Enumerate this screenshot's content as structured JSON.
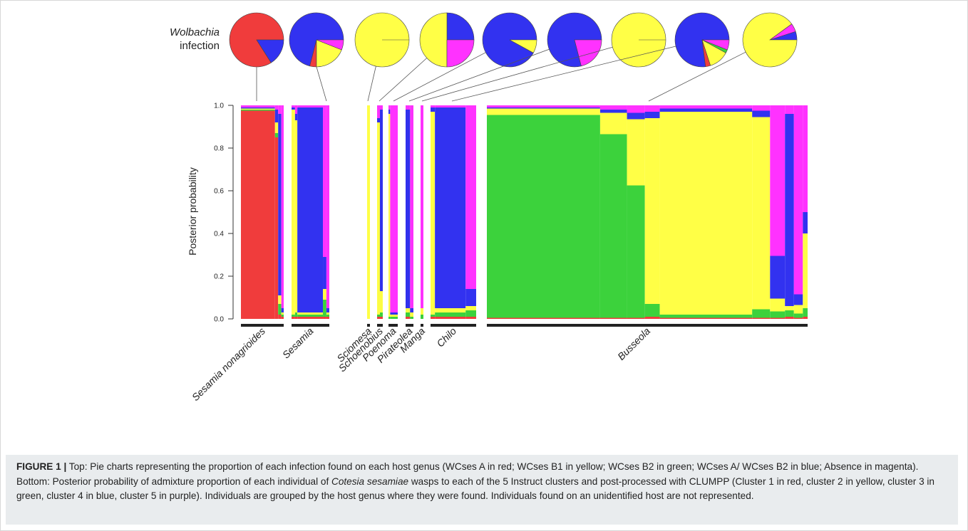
{
  "wolbachia_label": {
    "line1": "Wolbachia",
    "line2": "infection"
  },
  "colors": {
    "red": "#f03c3c",
    "yellow": "#ffff46",
    "green": "#3cd23c",
    "blue": "#3232f0",
    "magenta": "#ff32ff"
  },
  "caption": {
    "figure_label": "FIGURE 1 |",
    "text_part1": " Top: Pie charts representing the proportion of each infection found on each host genus (WCses A in red; WCses B1 in yellow; WCses B2 in green; WCses A/ WCses B2 in blue; Absence in magenta). Bottom: Posterior probability of admixture proportion of each individual of ",
    "species": "Cotesia sesamiae",
    "text_part2": " wasps to each of the 5 Instruct clusters and post-processed with CLUMPP (Cluster 1 in red, cluster 2 in yellow, cluster 3 in green, cluster 4 in blue, cluster 5 in purple). Individuals are grouped by the host genus where they were found. Individuals found on an unidentified host are not represented."
  },
  "chart_data": [
    {
      "type": "pie",
      "title": "Wolbachia infection",
      "note": "one pie per host genus group, proportions of infection types",
      "pies": [
        {
          "host": "Sesamia nonagrioides",
          "slices": [
            {
              "name": "WCses A",
              "color": "red",
              "value": 0.84
            },
            {
              "name": "WCses A/ WCses B2",
              "color": "blue",
              "value": 0.16
            }
          ]
        },
        {
          "host": "Sesamia",
          "slices": [
            {
              "name": "WCses A/ WCses B2",
              "color": "blue",
              "value": 0.71
            },
            {
              "name": "WCses A",
              "color": "red",
              "value": 0.04
            },
            {
              "name": "WCses B1",
              "color": "yellow",
              "value": 0.19
            },
            {
              "name": "Absence",
              "color": "magenta",
              "value": 0.06
            }
          ]
        },
        {
          "host": "Sciomesa",
          "slices": [
            {
              "name": "WCses B1",
              "color": "yellow",
              "value": 1.0
            }
          ]
        },
        {
          "host": "Schoenobius",
          "slices": [
            {
              "name": "WCses A/ WCses B2",
              "color": "blue",
              "value": 0.25
            },
            {
              "name": "WCses B1",
              "color": "yellow",
              "value": 0.5
            },
            {
              "name": "Absence",
              "color": "magenta",
              "value": 0.25
            }
          ]
        },
        {
          "host": "Poenoma",
          "slices": [
            {
              "name": "WCses A/ WCses B2",
              "color": "blue",
              "value": 0.92
            },
            {
              "name": "WCses B1",
              "color": "yellow",
              "value": 0.08
            }
          ]
        },
        {
          "host": "Pirateolea",
          "slices": [
            {
              "name": "WCses A/ WCses B2",
              "color": "blue",
              "value": 0.79
            },
            {
              "name": "Absence",
              "color": "magenta",
              "value": 0.21
            }
          ]
        },
        {
          "host": "Manga",
          "slices": [
            {
              "name": "WCses B1",
              "color": "yellow",
              "value": 1.0
            }
          ]
        },
        {
          "host": "Chilo",
          "slices": [
            {
              "name": "WCses A/ WCses B2",
              "color": "blue",
              "value": 0.77
            },
            {
              "name": "WCses A",
              "color": "red",
              "value": 0.03
            },
            {
              "name": "WCses B1",
              "color": "yellow",
              "value": 0.12
            },
            {
              "name": "WCses B2",
              "color": "green",
              "value": 0.02
            },
            {
              "name": "Absence",
              "color": "magenta",
              "value": 0.06
            }
          ]
        },
        {
          "host": "Busseola",
          "slices": [
            {
              "name": "WCses A/ WCses B2",
              "color": "blue",
              "value": 0.05
            },
            {
              "name": "Absence",
              "color": "magenta",
              "value": 0.05
            },
            {
              "name": "WCses B1",
              "color": "yellow",
              "value": 0.9
            }
          ]
        }
      ]
    },
    {
      "type": "bar",
      "subtype": "stacked-admixture",
      "ylabel": "Posterior probability",
      "ylim": [
        0,
        1
      ],
      "yticks": [
        "0.0",
        "0.2",
        "0.4",
        "0.6",
        "0.8",
        "1.0"
      ],
      "cluster_order": [
        "red",
        "green",
        "yellow",
        "blue",
        "magenta"
      ],
      "groups": [
        {
          "name": "Sesamia nonagrioides",
          "label_italic": true,
          "segments": [
            {
              "n": 43,
              "red": 0.975,
              "green": 0.005,
              "yellow": 0.005,
              "blue": 0.005,
              "magenta": 0.01
            },
            {
              "n": 4,
              "red": 0.85,
              "green": 0.02,
              "yellow": 0.05,
              "blue": 0.06,
              "magenta": 0.02
            },
            {
              "n": 4,
              "red": 0.02,
              "green": 0.05,
              "yellow": 0.04,
              "blue": 0.85,
              "magenta": 0.04
            },
            {
              "n": 3,
              "red": 0.01,
              "green": 0.01,
              "yellow": 0.01,
              "blue": 0.02,
              "magenta": 0.95
            }
          ]
        },
        {
          "name": "Sesamia",
          "label_italic": true,
          "segments": [
            {
              "n": 6,
              "red": 0.01,
              "green": 0.01,
              "yellow": 0.96,
              "blue": 0.01,
              "magenta": 0.01
            },
            {
              "n": 4,
              "red": 0.01,
              "green": 0.02,
              "yellow": 0.9,
              "blue": 0.03,
              "magenta": 0.04
            },
            {
              "n": 44,
              "red": 0.01,
              "green": 0.01,
              "yellow": 0.01,
              "blue": 0.96,
              "magenta": 0.01
            },
            {
              "n": 6,
              "red": 0.01,
              "green": 0.08,
              "yellow": 0.05,
              "blue": 0.15,
              "magenta": 0.71
            },
            {
              "n": 5,
              "red": 0.01,
              "green": 0.01,
              "yellow": 0.01,
              "blue": 0.02,
              "magenta": 0.95
            }
          ]
        },
        {
          "name": "Sciomesa",
          "label_italic": true,
          "segments": [
            {
              "n": 1,
              "red": 0.0,
              "green": 0.0,
              "yellow": 1.0,
              "blue": 0.0,
              "magenta": 0.0
            }
          ]
        },
        {
          "name": "Schoenobius",
          "label_italic": true,
          "segments": [
            {
              "n": 2,
              "red": 0.01,
              "green": 0.01,
              "yellow": 0.9,
              "blue": 0.02,
              "magenta": 0.06
            },
            {
              "n": 2,
              "red": 0.01,
              "green": 0.02,
              "yellow": 0.1,
              "blue": 0.85,
              "magenta": 0.02
            }
          ]
        },
        {
          "name": "Poenoma",
          "label_italic": true,
          "segments": [
            {
              "n": 2,
              "red": 0.0,
              "green": 0.01,
              "yellow": 0.95,
              "blue": 0.02,
              "magenta": 0.02
            },
            {
              "n": 9,
              "red": 0.0,
              "green": 0.01,
              "yellow": 0.01,
              "blue": 0.01,
              "magenta": 0.97
            }
          ]
        },
        {
          "name": "Pirateolea",
          "label_italic": true,
          "segments": [
            {
              "n": 4,
              "red": 0.01,
              "green": 0.02,
              "yellow": 0.02,
              "blue": 0.93,
              "magenta": 0.02
            },
            {
              "n": 3,
              "red": 0.0,
              "green": 0.01,
              "yellow": 0.02,
              "blue": 0.02,
              "magenta": 0.95
            }
          ]
        },
        {
          "name": "Manga",
          "label_italic": true,
          "segments": [
            {
              "n": 2,
              "red": 0.0,
              "green": 0.02,
              "yellow": 0.03,
              "blue": 0.0,
              "magenta": 0.95
            }
          ]
        },
        {
          "name": "Chilo",
          "label_italic": true,
          "segments": [
            {
              "n": 5,
              "red": 0.01,
              "green": 0.01,
              "yellow": 0.95,
              "blue": 0.02,
              "magenta": 0.01
            },
            {
              "n": 35,
              "red": 0.01,
              "green": 0.02,
              "yellow": 0.02,
              "blue": 0.94,
              "magenta": 0.01
            },
            {
              "n": 12,
              "red": 0.01,
              "green": 0.03,
              "yellow": 0.02,
              "blue": 0.08,
              "magenta": 0.86
            }
          ]
        },
        {
          "name": "Busseola",
          "label_italic": true,
          "segments": [
            {
              "n": 190,
              "red": 0.005,
              "green": 0.95,
              "yellow": 0.03,
              "blue": 0.005,
              "magenta": 0.01
            },
            {
              "n": 45,
              "red": 0.005,
              "green": 0.86,
              "yellow": 0.1,
              "blue": 0.015,
              "magenta": 0.02
            },
            {
              "n": 30,
              "red": 0.005,
              "green": 0.62,
              "yellow": 0.31,
              "blue": 0.03,
              "magenta": 0.035
            },
            {
              "n": 25,
              "red": 0.01,
              "green": 0.06,
              "yellow": 0.87,
              "blue": 0.03,
              "magenta": 0.03
            },
            {
              "n": 155,
              "red": 0.005,
              "green": 0.015,
              "yellow": 0.95,
              "blue": 0.015,
              "magenta": 0.015
            },
            {
              "n": 30,
              "red": 0.005,
              "green": 0.04,
              "yellow": 0.9,
              "blue": 0.03,
              "magenta": 0.025
            },
            {
              "n": 25,
              "red": 0.005,
              "green": 0.03,
              "yellow": 0.06,
              "blue": 0.2,
              "magenta": 0.705
            },
            {
              "n": 15,
              "red": 0.01,
              "green": 0.03,
              "yellow": 0.02,
              "blue": 0.9,
              "magenta": 0.04
            },
            {
              "n": 15,
              "red": 0.005,
              "green": 0.02,
              "yellow": 0.04,
              "blue": 0.05,
              "magenta": 0.885
            },
            {
              "n": 8,
              "red": 0.01,
              "green": 0.04,
              "yellow": 0.35,
              "blue": 0.1,
              "magenta": 0.5
            }
          ]
        }
      ]
    }
  ]
}
